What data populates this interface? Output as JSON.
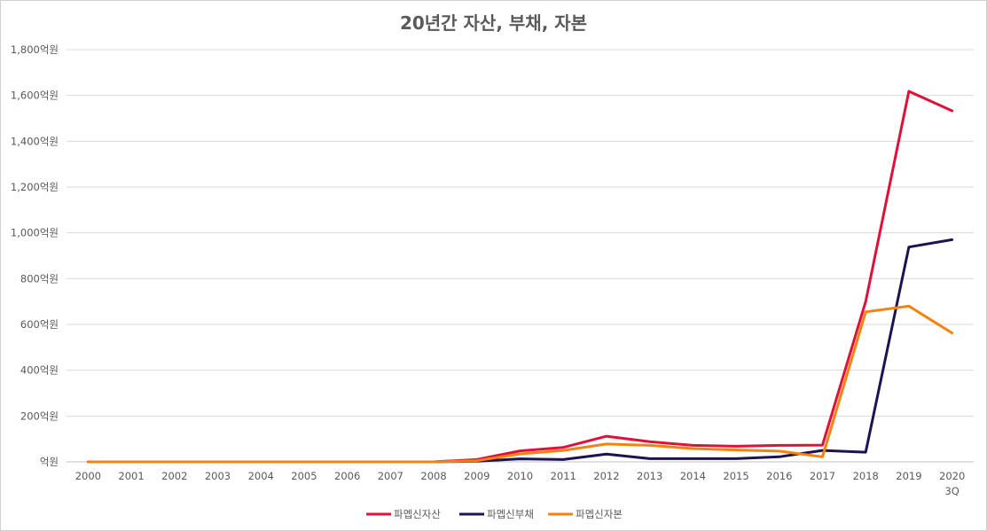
{
  "chart_data": {
    "type": "line",
    "title": "20년간 자산, 부채, 자본",
    "xlabel": "",
    "ylabel": "",
    "ylim": [
      0,
      1800
    ],
    "ytick_values": [
      0,
      200,
      400,
      600,
      800,
      1000,
      1200,
      1400,
      1600,
      1800
    ],
    "ytick_labels": [
      "억원",
      "200억원",
      "400억원",
      "600억원",
      "800억원",
      "1,000억원",
      "1,200억원",
      "1,400억원",
      "1,600억원",
      "1,800억원"
    ],
    "categories": [
      "2000",
      "2001",
      "2002",
      "2003",
      "2004",
      "2005",
      "2006",
      "2007",
      "2008",
      "2009",
      "2010",
      "2011",
      "2012",
      "2013",
      "2014",
      "2015",
      "2016",
      "2017",
      "2018",
      "2019",
      "2020\n3Q"
    ],
    "grid": true,
    "legend_position": "bottom",
    "series": [
      {
        "name": "파멥신자산",
        "color": "#e0103a",
        "values": [
          0,
          0,
          0,
          0,
          0,
          0,
          0,
          0,
          0,
          10,
          48,
          63,
          112,
          88,
          72,
          68,
          72,
          73,
          700,
          1618,
          1533
        ]
      },
      {
        "name": "파멥신부채",
        "color": "#1c1450",
        "values": [
          0,
          0,
          0,
          0,
          0,
          0,
          0,
          0,
          0,
          3,
          13,
          10,
          34,
          14,
          14,
          14,
          22,
          50,
          42,
          938,
          970
        ]
      },
      {
        "name": "파멥신자본",
        "color": "#f5820f",
        "values": [
          0,
          0,
          0,
          0,
          0,
          0,
          0,
          0,
          0,
          5,
          35,
          50,
          78,
          72,
          58,
          52,
          47,
          22,
          655,
          680,
          563
        ]
      }
    ]
  }
}
